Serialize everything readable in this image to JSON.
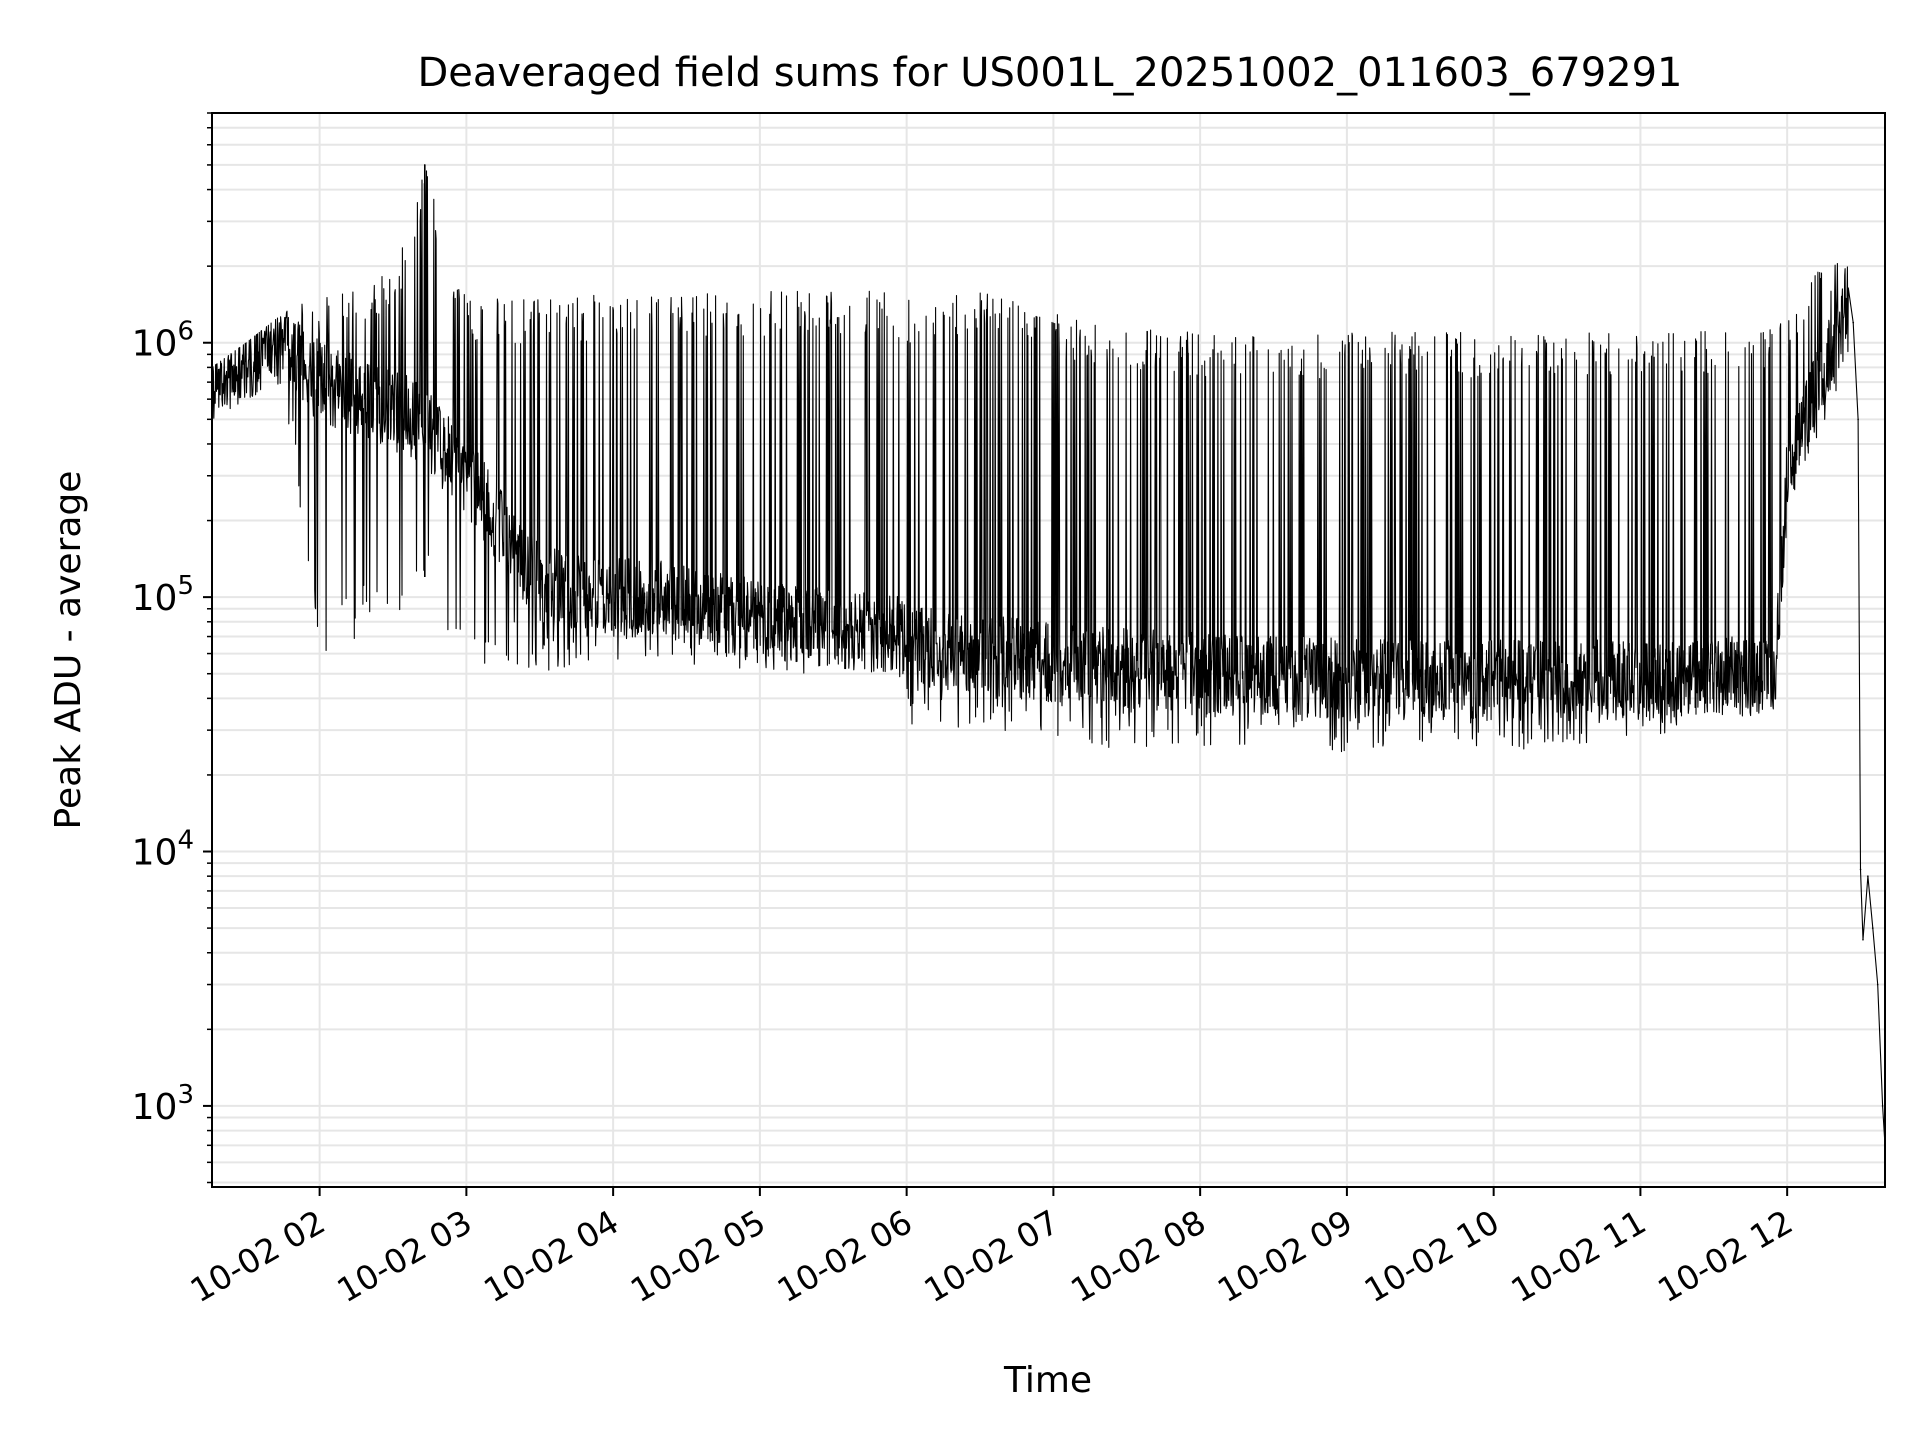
{
  "chart_data": {
    "type": "line",
    "title": "Deaveraged field sums for US001L_20251002_011603_679291",
    "xlabel": "Time",
    "ylabel": "Peak ADU - average",
    "yscale": "log",
    "ylim": [
      480,
      8000000
    ],
    "y_ticks": [
      {
        "value": 1000,
        "base": "10",
        "exp": "3"
      },
      {
        "value": 10000,
        "base": "10",
        "exp": "4"
      },
      {
        "value": 100000,
        "base": "10",
        "exp": "5"
      },
      {
        "value": 1000000,
        "base": "10",
        "exp": "6"
      }
    ],
    "xlim": [
      "2025-10-02T01:16",
      "2025-10-02T12:40"
    ],
    "x_ticks": [
      {
        "value": "2025-10-02T02:00",
        "label": "10-02 02"
      },
      {
        "value": "2025-10-02T03:00",
        "label": "10-02 03"
      },
      {
        "value": "2025-10-02T04:00",
        "label": "10-02 04"
      },
      {
        "value": "2025-10-02T05:00",
        "label": "10-02 05"
      },
      {
        "value": "2025-10-02T06:00",
        "label": "10-02 06"
      },
      {
        "value": "2025-10-02T07:00",
        "label": "10-02 07"
      },
      {
        "value": "2025-10-02T08:00",
        "label": "10-02 08"
      },
      {
        "value": "2025-10-02T09:00",
        "label": "10-02 09"
      },
      {
        "value": "2025-10-02T10:00",
        "label": "10-02 10"
      },
      {
        "value": "2025-10-02T11:00",
        "label": "10-02 11"
      },
      {
        "value": "2025-10-02T12:00",
        "label": "10-02 12"
      }
    ],
    "grid": true,
    "colors": {
      "line": "#000000",
      "grid": "#e6e6e6",
      "axes": "#000000"
    },
    "series": [
      {
        "style": "noisy-envelope",
        "envelope": [
          {
            "x": "2025-10-02T01:16",
            "low": 500000,
            "high": 800000
          },
          {
            "x": "2025-10-02T01:30",
            "low": 600000,
            "high": 1000000
          },
          {
            "x": "2025-10-02T01:45",
            "low": 700000,
            "high": 1300000
          },
          {
            "x": "2025-10-02T02:00",
            "low": 60000,
            "high": 1600000
          },
          {
            "x": "2025-10-02T02:30",
            "low": 80000,
            "high": 1900000
          },
          {
            "x": "2025-10-02T02:43",
            "low": 100000,
            "high": 5000000
          },
          {
            "x": "2025-10-02T03:00",
            "low": 55000,
            "high": 1500000
          },
          {
            "x": "2025-10-02T03:30",
            "low": 50000,
            "high": 1500000
          },
          {
            "x": "2025-10-02T04:00",
            "low": 55000,
            "high": 1550000
          },
          {
            "x": "2025-10-02T04:30",
            "low": 55000,
            "high": 1600000
          },
          {
            "x": "2025-10-02T05:00",
            "low": 50000,
            "high": 1600000
          },
          {
            "x": "2025-10-02T05:30",
            "low": 50000,
            "high": 1600000
          },
          {
            "x": "2025-10-02T05:55",
            "low": 50000,
            "high": 1600000
          },
          {
            "x": "2025-10-02T06:00",
            "low": 30000,
            "high": 1500000
          },
          {
            "x": "2025-10-02T06:30",
            "low": 30000,
            "high": 1600000
          },
          {
            "x": "2025-10-02T07:00",
            "low": 27000,
            "high": 1300000
          },
          {
            "x": "2025-10-02T07:30",
            "low": 25000,
            "high": 1200000
          },
          {
            "x": "2025-10-02T08:00",
            "low": 24000,
            "high": 1100000
          },
          {
            "x": "2025-10-02T08:30",
            "low": 25000,
            "high": 1050000
          },
          {
            "x": "2025-10-02T09:00",
            "low": 24000,
            "high": 1100000
          },
          {
            "x": "2025-10-02T09:30",
            "low": 25000,
            "high": 1100000
          },
          {
            "x": "2025-10-02T10:00",
            "low": 24000,
            "high": 1100000
          },
          {
            "x": "2025-10-02T10:30",
            "low": 26000,
            "high": 1100000
          },
          {
            "x": "2025-10-02T11:00",
            "low": 27000,
            "high": 1100000
          },
          {
            "x": "2025-10-02T11:30",
            "low": 28000,
            "high": 1150000
          },
          {
            "x": "2025-10-02T11:55",
            "low": 35000,
            "high": 1200000
          },
          {
            "x": "2025-10-02T12:00",
            "low": 200000,
            "high": 1500000
          },
          {
            "x": "2025-10-02T12:15",
            "low": 400000,
            "high": 2000000
          },
          {
            "x": "2025-10-02T12:25",
            "low": 900000,
            "high": 2200000
          }
        ],
        "baseline": [
          {
            "x": "2025-10-02T01:16",
            "y": 650000
          },
          {
            "x": "2025-10-02T01:45",
            "y": 1000000
          },
          {
            "x": "2025-10-02T02:00",
            "y": 700000
          },
          {
            "x": "2025-10-02T02:40",
            "y": 500000
          },
          {
            "x": "2025-10-02T03:00",
            "y": 300000
          },
          {
            "x": "2025-10-02T03:30",
            "y": 110000
          },
          {
            "x": "2025-10-02T04:00",
            "y": 100000
          },
          {
            "x": "2025-10-02T04:30",
            "y": 95000
          },
          {
            "x": "2025-10-02T05:00",
            "y": 80000
          },
          {
            "x": "2025-10-02T05:30",
            "y": 75000
          },
          {
            "x": "2025-10-02T05:55",
            "y": 72000
          },
          {
            "x": "2025-10-02T06:00",
            "y": 65000
          },
          {
            "x": "2025-10-02T07:00",
            "y": 55000
          },
          {
            "x": "2025-10-02T08:00",
            "y": 50000
          },
          {
            "x": "2025-10-02T09:00",
            "y": 48000
          },
          {
            "x": "2025-10-02T10:00",
            "y": 47000
          },
          {
            "x": "2025-10-02T11:00",
            "y": 47000
          },
          {
            "x": "2025-10-02T11:55",
            "y": 50000
          },
          {
            "x": "2025-10-02T12:00",
            "y": 300000
          },
          {
            "x": "2025-10-02T12:15",
            "y": 800000
          },
          {
            "x": "2025-10-02T12:25",
            "y": 1300000
          }
        ],
        "points": [
          {
            "x": "2025-10-02T02:43",
            "y": 5000000
          },
          {
            "x": "2025-10-02T12:27",
            "y": 1200000
          },
          {
            "x": "2025-10-02T12:29",
            "y": 500000
          },
          {
            "x": "2025-10-02T12:30",
            "y": 8500
          },
          {
            "x": "2025-10-02T12:31",
            "y": 4500
          },
          {
            "x": "2025-10-02T12:33",
            "y": 8000
          },
          {
            "x": "2025-10-02T12:35",
            "y": 5000
          },
          {
            "x": "2025-10-02T12:37",
            "y": 3000
          },
          {
            "x": "2025-10-02T12:39",
            "y": 1000
          },
          {
            "x": "2025-10-02T12:40",
            "y": 700
          }
        ]
      }
    ]
  }
}
